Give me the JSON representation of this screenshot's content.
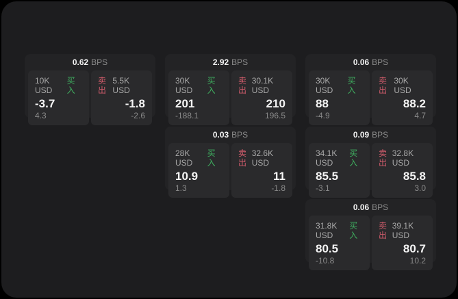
{
  "labels": {
    "bps_unit": "BPS",
    "buy": "买入",
    "sell": "卖出"
  },
  "colors": {
    "background": "#000000",
    "surface": "#1d1d1f",
    "card": "#232325",
    "tile": "#2a2a2c",
    "buy_green": "#3fae5f",
    "sell_red": "#d25c6c"
  },
  "cards": [
    {
      "bps": "0.62",
      "buy": {
        "amount": "10K USD",
        "price": "-3.7",
        "change": "4.3"
      },
      "sell": {
        "amount": "5.5K USD",
        "price": "-1.8",
        "change": "-2.6"
      }
    },
    {
      "bps": "2.92",
      "buy": {
        "amount": "30K USD",
        "price": "201",
        "change": "-188.1"
      },
      "sell": {
        "amount": "30.1K USD",
        "price": "210",
        "change": "196.5"
      }
    },
    {
      "bps": "0.06",
      "buy": {
        "amount": "30K USD",
        "price": "88",
        "change": "-4.9"
      },
      "sell": {
        "amount": "30K USD",
        "price": "88.2",
        "change": "4.7"
      }
    },
    {
      "bps": "0.03",
      "buy": {
        "amount": "28K USD",
        "price": "10.9",
        "change": "1.3"
      },
      "sell": {
        "amount": "32.6K USD",
        "price": "11",
        "change": "-1.8"
      }
    },
    {
      "bps": "0.09",
      "buy": {
        "amount": "34.1K USD",
        "price": "85.5",
        "change": "-3.1"
      },
      "sell": {
        "amount": "32.8K USD",
        "price": "85.8",
        "change": "3.0"
      }
    },
    {
      "bps": "0.06",
      "buy": {
        "amount": "31.8K USD",
        "price": "80.5",
        "change": "-10.8"
      },
      "sell": {
        "amount": "39.1K USD",
        "price": "80.7",
        "change": "10.2"
      }
    }
  ]
}
